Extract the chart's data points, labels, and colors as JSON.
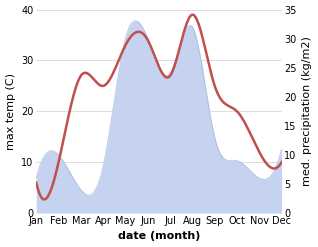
{
  "months": [
    "Jan",
    "Feb",
    "Mar",
    "Apr",
    "May",
    "Jun",
    "Jul",
    "Aug",
    "Sep",
    "Oct",
    "Nov",
    "Dec"
  ],
  "temp": [
    6,
    10,
    27,
    25,
    33,
    34,
    27,
    39,
    25,
    20,
    12,
    10
  ],
  "precip": [
    6,
    10,
    4,
    8,
    30,
    30,
    24,
    32,
    13,
    9,
    6,
    11
  ],
  "temp_color": "#c0504d",
  "precip_color": "#c5d3f0",
  "precip_edge_color": "#a0b8e0",
  "ylim_temp": [
    0,
    40
  ],
  "ylim_precip": [
    0,
    35
  ],
  "ylabel_left": "max temp (C)",
  "ylabel_right": "med. precipitation (kg/m2)",
  "xlabel": "date (month)",
  "bg_color": "#ffffff",
  "grid_color": "#d0d0d0",
  "label_fontsize": 8,
  "tick_fontsize": 7
}
